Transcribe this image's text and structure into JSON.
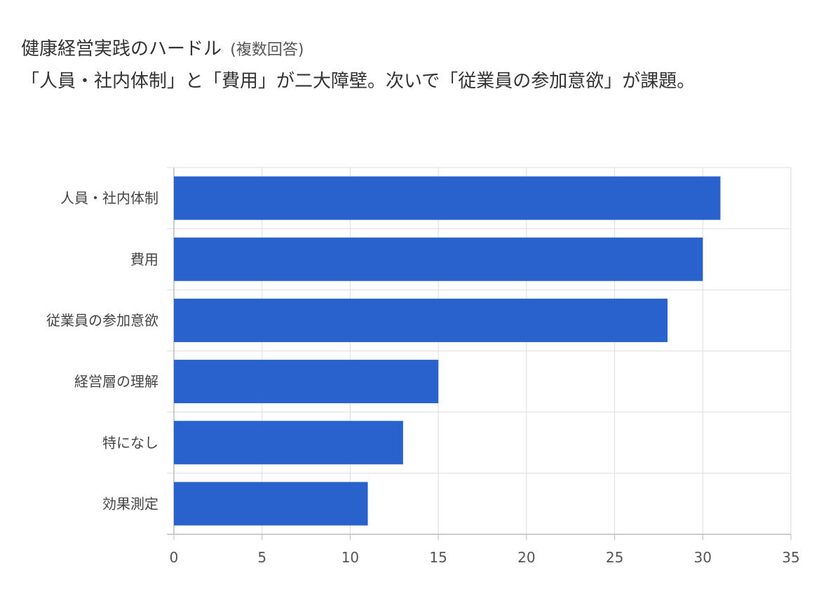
{
  "chart_data": {
    "type": "bar",
    "orientation": "horizontal",
    "title": "健康経営実践のハードル",
    "title_note": "(複数回答)",
    "subtitle": "「人員・社内体制」と「費用」が二大障壁。次いで「従業員の参加意欲」が課題。",
    "categories": [
      "人員・社内体制",
      "費用",
      "従業員の参加意欲",
      "経営層の理解",
      "特になし",
      "効果測定"
    ],
    "values": [
      31,
      30,
      28,
      15,
      13,
      11
    ],
    "xlim": [
      0,
      35
    ],
    "xticks": [
      0,
      5,
      10,
      15,
      20,
      25,
      30,
      35
    ],
    "xlabel": "",
    "ylabel": "",
    "grid": true,
    "legend": "none",
    "bar_color": "#2962cc",
    "grid_color": "#dddddd",
    "axis_color": "#bbbbbb"
  }
}
